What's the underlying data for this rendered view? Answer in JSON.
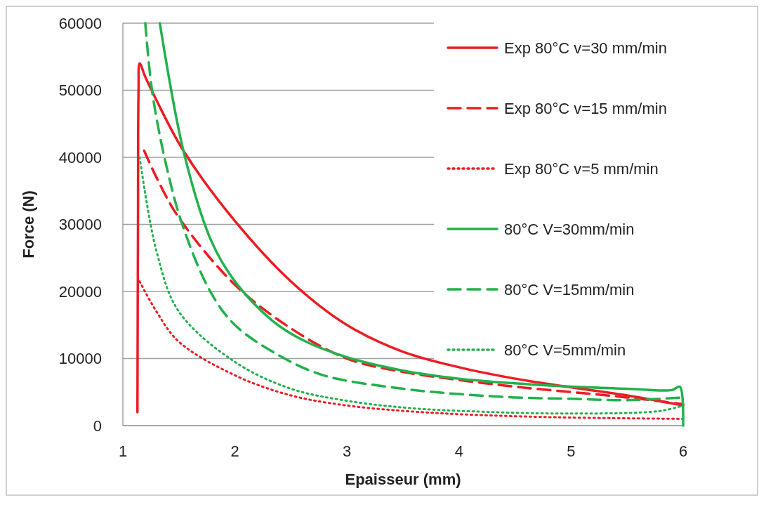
{
  "chart_data": {
    "type": "line",
    "xlabel": "Epaisseur (mm)",
    "ylabel": "Force (N)",
    "xlim": [
      1,
      6
    ],
    "xticks": [
      1,
      2,
      3,
      4,
      5,
      6
    ],
    "ylim": [
      0,
      60000
    ],
    "yticks": [
      0,
      10000,
      20000,
      30000,
      40000,
      50000,
      60000
    ],
    "grid": "y",
    "legend": "top right",
    "series": [
      {
        "name": "Exp 80°C v=30 mm/min",
        "color": "#ed1c24",
        "line_style": "solid",
        "x": [
          1.13,
          1.135,
          1.14,
          1.15,
          1.2,
          1.3,
          1.54,
          2,
          2.5,
          3,
          3.5,
          4,
          4.5,
          5,
          5.5,
          6
        ],
        "values": [
          2000,
          30000,
          50000,
          54000,
          52000,
          48500,
          41000,
          30500,
          21500,
          15000,
          11000,
          8700,
          7000,
          5700,
          4500,
          3000
        ]
      },
      {
        "name": "Exp 80°C v=15 mm/min",
        "color": "#ed1c24",
        "line_style": "dashed",
        "x": [
          1.19,
          1.3,
          1.5,
          2,
          2.5,
          3,
          3.5,
          4,
          4.5,
          5,
          5.5,
          6
        ],
        "values": [
          41000,
          37000,
          31000,
          21000,
          14500,
          10000,
          8000,
          6800,
          5800,
          5000,
          4200,
          3200
        ]
      },
      {
        "name": "Exp 80°C v=5 mm/min",
        "color": "#ed1c24",
        "line_style": "dotted",
        "x": [
          1.15,
          1.3,
          1.5,
          2,
          2.5,
          3,
          3.5,
          4,
          4.5,
          5,
          6
        ],
        "values": [
          21500,
          17000,
          12500,
          7500,
          4500,
          3000,
          2200,
          1700,
          1400,
          1200,
          1000
        ]
      },
      {
        "name": "80°C V=30mm/min",
        "color": "#22b14c",
        "line_style": "solid",
        "x": [
          1.33,
          1.54,
          1.79,
          2,
          2.33,
          2.6,
          3,
          3.5,
          4,
          4.5,
          5,
          5.5,
          5.9,
          5.97,
          6
        ],
        "values": [
          60000,
          41000,
          27500,
          21500,
          15700,
          12800,
          10200,
          8200,
          7000,
          6300,
          5800,
          5500,
          5300,
          5800,
          0
        ]
      },
      {
        "name": "80°C V=15mm/min",
        "color": "#22b14c",
        "line_style": "dashed",
        "x": [
          1.2,
          1.26,
          1.375,
          1.53,
          1.78,
          2,
          2.39,
          2.79,
          3.5,
          4,
          4.5,
          5,
          5.5,
          6
        ],
        "values": [
          60000,
          50000,
          39700,
          30000,
          20000,
          15000,
          10500,
          7500,
          5500,
          4700,
          4200,
          4000,
          3800,
          4200
        ]
      },
      {
        "name": "80°C V=5mm/min",
        "color": "#22b14c",
        "line_style": "dotted",
        "x": [
          1.15,
          1.3,
          1.5,
          2,
          2.5,
          3,
          3.5,
          4,
          5,
          5.8,
          6
        ],
        "values": [
          40000,
          26000,
          17000,
          9500,
          5500,
          3700,
          2700,
          2200,
          1800,
          2200,
          3000
        ]
      }
    ]
  }
}
